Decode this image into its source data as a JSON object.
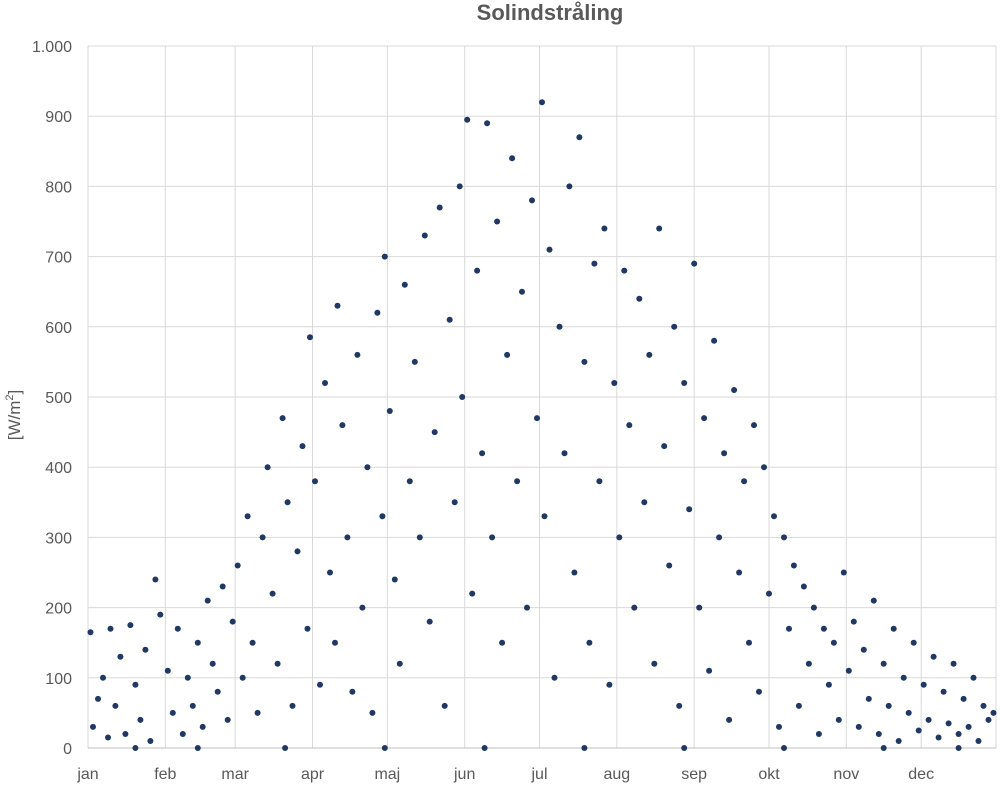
{
  "chart_data": {
    "type": "scatter",
    "title": "Solindstråling",
    "xlabel": "",
    "ylabel": "[W/m²]",
    "ylabel_main": "[W/m",
    "ylabel_sup": "2",
    "ylabel_end": "]",
    "x_unit": "day of year",
    "xlim": [
      1,
      365
    ],
    "ylim": [
      0,
      1000
    ],
    "grid": true,
    "legend": "none",
    "marker_color": "#1f3864",
    "x_tick_labels": [
      "jan",
      "feb",
      "mar",
      "apr",
      "maj",
      "jun",
      "jul",
      "aug",
      "sep",
      "okt",
      "nov",
      "dec"
    ],
    "x_tick_days": [
      1,
      32,
      60,
      91,
      121,
      152,
      182,
      213,
      244,
      274,
      305,
      335
    ],
    "y_ticks": [
      0,
      100,
      200,
      300,
      400,
      500,
      600,
      700,
      800,
      900,
      1000
    ],
    "y_tick_labels": [
      "0",
      "100",
      "200",
      "300",
      "400",
      "500",
      "600",
      "700",
      "800",
      "900",
      "1.000"
    ],
    "series": [
      {
        "points": [
          [
            2,
            165
          ],
          [
            3,
            30
          ],
          [
            5,
            70
          ],
          [
            7,
            100
          ],
          [
            9,
            15
          ],
          [
            10,
            170
          ],
          [
            12,
            60
          ],
          [
            14,
            130
          ],
          [
            16,
            20
          ],
          [
            18,
            175
          ],
          [
            20,
            90
          ],
          [
            22,
            40
          ],
          [
            24,
            140
          ],
          [
            26,
            10
          ],
          [
            28,
            240
          ],
          [
            30,
            190
          ],
          [
            33,
            110
          ],
          [
            35,
            50
          ],
          [
            37,
            170
          ],
          [
            39,
            20
          ],
          [
            41,
            100
          ],
          [
            43,
            60
          ],
          [
            45,
            150
          ],
          [
            47,
            30
          ],
          [
            49,
            210
          ],
          [
            51,
            120
          ],
          [
            53,
            80
          ],
          [
            55,
            230
          ],
          [
            57,
            40
          ],
          [
            59,
            180
          ],
          [
            61,
            260
          ],
          [
            63,
            100
          ],
          [
            65,
            330
          ],
          [
            67,
            150
          ],
          [
            69,
            50
          ],
          [
            71,
            300
          ],
          [
            73,
            400
          ],
          [
            75,
            220
          ],
          [
            77,
            120
          ],
          [
            79,
            470
          ],
          [
            81,
            350
          ],
          [
            83,
            60
          ],
          [
            85,
            280
          ],
          [
            87,
            430
          ],
          [
            89,
            170
          ],
          [
            90,
            585
          ],
          [
            92,
            380
          ],
          [
            94,
            90
          ],
          [
            96,
            520
          ],
          [
            98,
            250
          ],
          [
            100,
            150
          ],
          [
            101,
            630
          ],
          [
            103,
            460
          ],
          [
            105,
            300
          ],
          [
            107,
            80
          ],
          [
            109,
            560
          ],
          [
            111,
            200
          ],
          [
            113,
            400
          ],
          [
            115,
            50
          ],
          [
            117,
            620
          ],
          [
            119,
            330
          ],
          [
            120,
            700
          ],
          [
            122,
            480
          ],
          [
            124,
            240
          ],
          [
            126,
            120
          ],
          [
            128,
            660
          ],
          [
            130,
            380
          ],
          [
            132,
            550
          ],
          [
            134,
            300
          ],
          [
            136,
            730
          ],
          [
            138,
            180
          ],
          [
            140,
            450
          ],
          [
            142,
            770
          ],
          [
            144,
            60
          ],
          [
            146,
            610
          ],
          [
            148,
            350
          ],
          [
            150,
            800
          ],
          [
            151,
            500
          ],
          [
            153,
            895
          ],
          [
            155,
            220
          ],
          [
            157,
            680
          ],
          [
            159,
            420
          ],
          [
            161,
            890
          ],
          [
            163,
            300
          ],
          [
            165,
            750
          ],
          [
            167,
            150
          ],
          [
            169,
            560
          ],
          [
            171,
            840
          ],
          [
            173,
            380
          ],
          [
            175,
            650
          ],
          [
            177,
            200
          ],
          [
            179,
            780
          ],
          [
            181,
            470
          ],
          [
            183,
            920
          ],
          [
            184,
            330
          ],
          [
            186,
            710
          ],
          [
            188,
            100
          ],
          [
            190,
            600
          ],
          [
            192,
            420
          ],
          [
            194,
            800
          ],
          [
            196,
            250
          ],
          [
            198,
            870
          ],
          [
            200,
            550
          ],
          [
            202,
            150
          ],
          [
            204,
            690
          ],
          [
            206,
            380
          ],
          [
            208,
            740
          ],
          [
            210,
            90
          ],
          [
            212,
            520
          ],
          [
            214,
            300
          ],
          [
            216,
            680
          ],
          [
            218,
            460
          ],
          [
            220,
            200
          ],
          [
            222,
            640
          ],
          [
            224,
            350
          ],
          [
            226,
            560
          ],
          [
            228,
            120
          ],
          [
            230,
            740
          ],
          [
            232,
            430
          ],
          [
            234,
            260
          ],
          [
            236,
            600
          ],
          [
            238,
            60
          ],
          [
            240,
            520
          ],
          [
            242,
            340
          ],
          [
            244,
            690
          ],
          [
            246,
            200
          ],
          [
            248,
            470
          ],
          [
            250,
            110
          ],
          [
            252,
            580
          ],
          [
            254,
            300
          ],
          [
            256,
            420
          ],
          [
            258,
            40
          ],
          [
            260,
            510
          ],
          [
            262,
            250
          ],
          [
            264,
            380
          ],
          [
            266,
            150
          ],
          [
            268,
            460
          ],
          [
            270,
            80
          ],
          [
            272,
            400
          ],
          [
            274,
            220
          ],
          [
            276,
            330
          ],
          [
            278,
            30
          ],
          [
            280,
            300
          ],
          [
            282,
            170
          ],
          [
            284,
            260
          ],
          [
            286,
            60
          ],
          [
            288,
            230
          ],
          [
            290,
            120
          ],
          [
            292,
            200
          ],
          [
            294,
            20
          ],
          [
            296,
            170
          ],
          [
            298,
            90
          ],
          [
            300,
            150
          ],
          [
            302,
            40
          ],
          [
            304,
            250
          ],
          [
            306,
            110
          ],
          [
            308,
            180
          ],
          [
            310,
            30
          ],
          [
            312,
            140
          ],
          [
            314,
            70
          ],
          [
            316,
            210
          ],
          [
            318,
            20
          ],
          [
            320,
            120
          ],
          [
            322,
            60
          ],
          [
            324,
            170
          ],
          [
            326,
            10
          ],
          [
            328,
            100
          ],
          [
            330,
            50
          ],
          [
            332,
            150
          ],
          [
            334,
            25
          ],
          [
            336,
            90
          ],
          [
            338,
            40
          ],
          [
            340,
            130
          ],
          [
            342,
            15
          ],
          [
            344,
            80
          ],
          [
            346,
            35
          ],
          [
            348,
            120
          ],
          [
            350,
            20
          ],
          [
            352,
            70
          ],
          [
            354,
            30
          ],
          [
            356,
            100
          ],
          [
            358,
            10
          ],
          [
            360,
            60
          ],
          [
            362,
            40
          ],
          [
            364,
            50
          ],
          [
            45,
            0
          ],
          [
            80,
            0
          ],
          [
            120,
            0
          ],
          [
            160,
            0
          ],
          [
            200,
            0
          ],
          [
            240,
            0
          ],
          [
            280,
            0
          ],
          [
            320,
            0
          ],
          [
            20,
            0
          ],
          [
            350,
            0
          ]
        ]
      }
    ]
  }
}
